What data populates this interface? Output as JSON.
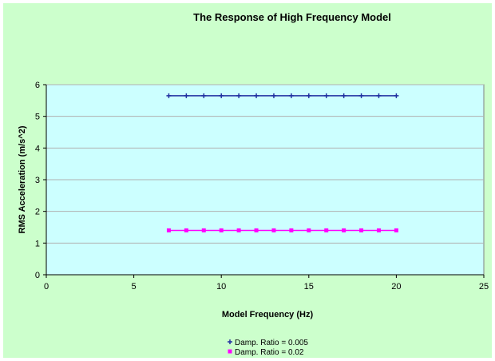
{
  "chart_data": {
    "type": "scatter",
    "title": "The Response of High Frequency Model",
    "xlabel": "Model Frequency (Hz)",
    "ylabel": "RMS Acceleration (m/s^2)",
    "xlim": [
      0,
      25
    ],
    "ylim": [
      0,
      6
    ],
    "xticks": [
      0,
      5,
      10,
      15,
      20,
      25
    ],
    "yticks": [
      0,
      1,
      2,
      3,
      4,
      5,
      6
    ],
    "grid": "horizontal",
    "legend_position": "bottom",
    "series": [
      {
        "name": "Damp. Ratio = 0.005",
        "color": "#1f2fa0",
        "marker": "plus",
        "x": [
          7,
          8,
          9,
          10,
          11,
          12,
          13,
          14,
          15,
          16,
          17,
          18,
          19,
          20
        ],
        "y": [
          5.65,
          5.65,
          5.65,
          5.65,
          5.65,
          5.65,
          5.65,
          5.65,
          5.65,
          5.65,
          5.65,
          5.65,
          5.65,
          5.65
        ]
      },
      {
        "name": "Damp. Ratio = 0.02",
        "color": "#ff00ff",
        "marker": "square",
        "x": [
          7,
          8,
          9,
          10,
          11,
          12,
          13,
          14,
          15,
          16,
          17,
          18,
          19,
          20
        ],
        "y": [
          1.4,
          1.4,
          1.4,
          1.4,
          1.4,
          1.4,
          1.4,
          1.4,
          1.4,
          1.4,
          1.4,
          1.4,
          1.4,
          1.4
        ]
      }
    ]
  }
}
